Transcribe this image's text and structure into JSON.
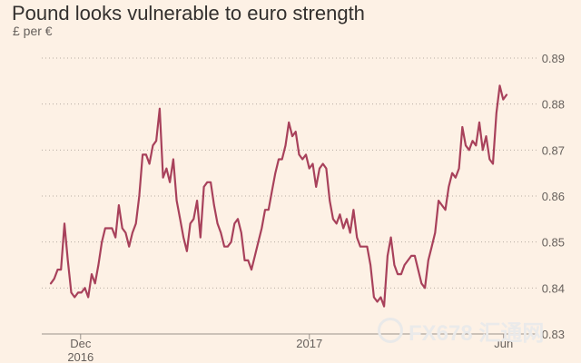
{
  "header": {
    "title": "Pound looks vulnerable to euro strength",
    "subtitle": "£ per €"
  },
  "watermark": {
    "text": "FX678 汇通网"
  },
  "chart_data": {
    "type": "line",
    "title": "Pound looks vulnerable to euro strength",
    "ylabel": "£ per €",
    "ylim": [
      0.83,
      0.89
    ],
    "yticks": [
      0.83,
      0.84,
      0.85,
      0.86,
      0.87,
      0.88,
      0.89
    ],
    "ytick_labels": [
      "0.83",
      "0.84",
      "0.85",
      "0.86",
      "0.87",
      "0.88",
      "0.89"
    ],
    "xlim": [
      0,
      114
    ],
    "xticks": [
      {
        "x": 9,
        "label": "Dec",
        "sublabel": "2016"
      },
      {
        "x": 62,
        "label": "2017",
        "sublabel": ""
      },
      {
        "x": 107,
        "label": "Jun",
        "sublabel": ""
      }
    ],
    "grid": true,
    "line_color": "#a8415b",
    "series": [
      {
        "values": [
          0.841,
          0.842,
          0.844,
          0.844,
          0.854,
          0.846,
          0.839,
          0.838,
          0.839,
          0.839,
          0.84,
          0.838,
          0.843,
          0.841,
          0.845,
          0.85,
          0.853,
          0.853,
          0.853,
          0.851,
          0.858,
          0.853,
          0.852,
          0.849,
          0.852,
          0.854,
          0.86,
          0.869,
          0.869,
          0.867,
          0.871,
          0.872,
          0.879,
          0.864,
          0.866,
          0.863,
          0.868,
          0.859,
          0.855,
          0.851,
          0.848,
          0.854,
          0.855,
          0.859,
          0.851,
          0.862,
          0.863,
          0.863,
          0.858,
          0.854,
          0.852,
          0.849,
          0.849,
          0.85,
          0.854,
          0.855,
          0.852,
          0.846,
          0.846,
          0.844,
          0.847,
          0.85,
          0.853,
          0.857,
          0.857,
          0.861,
          0.865,
          0.868,
          0.868,
          0.871,
          0.876,
          0.873,
          0.874,
          0.869,
          0.868,
          0.869,
          0.866,
          0.867,
          0.862,
          0.866,
          0.867,
          0.866,
          0.859,
          0.855,
          0.854,
          0.856,
          0.853,
          0.855,
          0.852,
          0.857,
          0.851,
          0.849,
          0.849,
          0.849,
          0.845,
          0.838,
          0.837,
          0.838,
          0.836,
          0.847,
          0.851,
          0.845,
          0.843,
          0.843,
          0.845,
          0.846,
          0.847,
          0.847,
          0.844,
          0.841,
          0.84,
          0.846,
          0.849,
          0.852,
          0.859,
          0.858,
          0.857,
          0.862,
          0.865,
          0.864,
          0.866,
          0.875,
          0.871,
          0.87,
          0.872,
          0.871,
          0.876,
          0.87,
          0.873,
          0.868,
          0.867,
          0.878,
          0.884,
          0.881,
          0.882
        ]
      }
    ]
  }
}
